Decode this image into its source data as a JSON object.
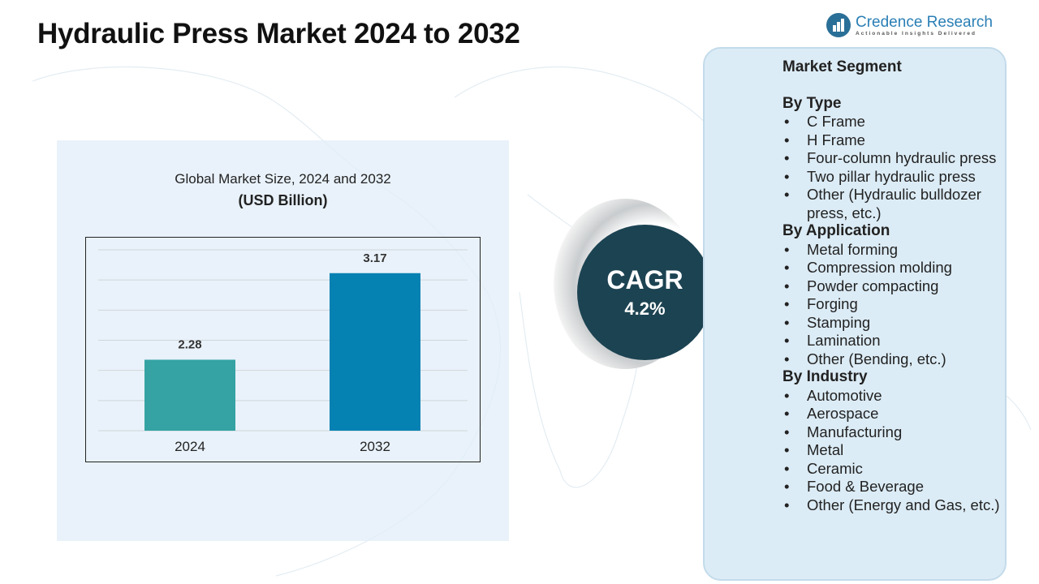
{
  "title": "Hydraulic Press Market 2024 to 2032",
  "logo": {
    "name": "Credence Research",
    "tagline": "Actionable Insights Delivered"
  },
  "chart_data": {
    "type": "bar",
    "title": "Global Market Size, 2024 and 2032",
    "subtitle": "(USD Billion)",
    "categories": [
      "2024",
      "2032"
    ],
    "values": [
      2.28,
      3.17
    ],
    "colors": [
      "#35a3a3",
      "#0581b2"
    ],
    "ylim": [
      1.55,
      3.41
    ],
    "grid": true,
    "data_labels": [
      "2.28",
      "3.17"
    ]
  },
  "cagr": {
    "label": "CAGR",
    "value": "4.2%"
  },
  "segments": {
    "heading": "Market Segment",
    "groups": [
      {
        "title": "By Type",
        "items": [
          "C Frame",
          "H Frame",
          "Four-column hydraulic press",
          "Two pillar hydraulic press",
          "Other (Hydraulic bulldozer press, etc.)"
        ]
      },
      {
        "title": "By Application",
        "items": [
          "Metal forming",
          "Compression molding",
          "Powder compacting",
          "Forging",
          "Stamping",
          "Lamination",
          "Other (Bending, etc.)"
        ]
      },
      {
        "title": "By Industry",
        "items": [
          "Automotive",
          "Aerospace",
          "Manufacturing",
          "Metal",
          "Ceramic",
          "Food & Beverage",
          "Other (Energy and Gas, etc.)"
        ]
      }
    ]
  }
}
